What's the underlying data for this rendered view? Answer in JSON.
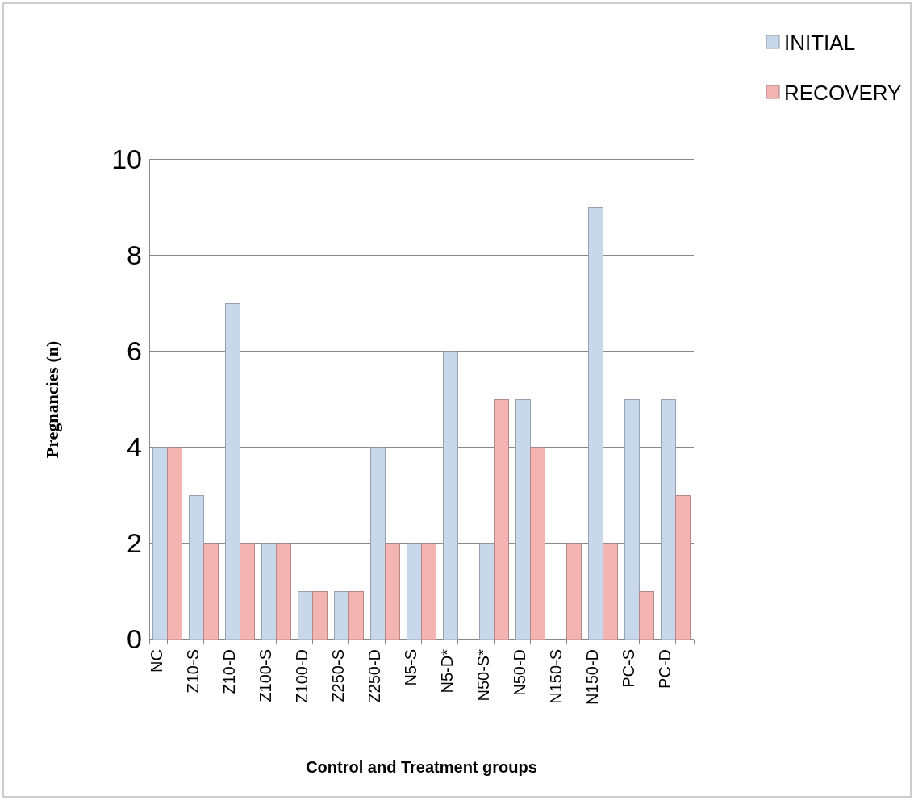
{
  "chart_data": {
    "type": "bar",
    "xlabel": "Control and Treatment groups",
    "ylabel": "Pregnancies (n)",
    "categories": [
      "NC",
      "Z10-S",
      "Z10-D",
      "Z100-S",
      "Z100-D",
      "Z250-S",
      "Z250-D",
      "N5-S",
      "N5-D*",
      "N50-S*",
      "N50-D",
      "N150-S",
      "N150-D",
      "PC-S",
      "PC-D"
    ],
    "series": [
      {
        "name": "INITIAL",
        "color": "#c9d7eb",
        "values": [
          4,
          3,
          7,
          2,
          1,
          1,
          4,
          2,
          6,
          2,
          5,
          0,
          9,
          5,
          5
        ]
      },
      {
        "name": "RECOVERY",
        "color": "#f4b4b2",
        "values": [
          4,
          2,
          2,
          2,
          1,
          1,
          2,
          2,
          0,
          5,
          4,
          2,
          2,
          1,
          3
        ]
      }
    ],
    "ylim": [
      0,
      10
    ],
    "yticks": [
      0,
      2,
      4,
      6,
      8,
      10
    ],
    "grid": "y",
    "legend": "top right"
  }
}
